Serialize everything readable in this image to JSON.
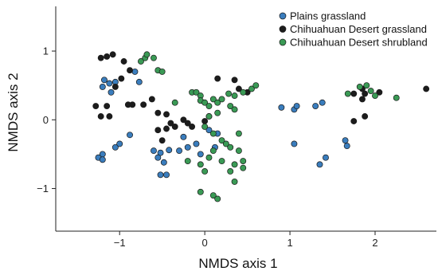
{
  "chart_data": {
    "type": "scatter",
    "xlabel": "NMDS axis 1",
    "ylabel": "NMDS axis 2",
    "xlim": [
      -1.75,
      2.72
    ],
    "ylim": [
      -1.62,
      1.65
    ],
    "xticks": [
      -1,
      0,
      1,
      2
    ],
    "yticks": [
      -1,
      0,
      1
    ],
    "xtick_labels": [
      "−1",
      "0",
      "1",
      "2"
    ],
    "ytick_labels": [
      "−1",
      "0",
      "1"
    ],
    "grid": false,
    "legend_position": "top-right",
    "series": [
      {
        "name": "Plains grassland",
        "color": "#3a7dbd",
        "points": [
          [
            -1.18,
            0.58
          ],
          [
            -1.12,
            0.53
          ],
          [
            -1.05,
            0.55
          ],
          [
            -1.2,
            0.48
          ],
          [
            -1.1,
            0.4
          ],
          [
            -0.82,
            0.7
          ],
          [
            -0.77,
            0.55
          ],
          [
            -1.2,
            -0.5
          ],
          [
            -1.25,
            -0.55
          ],
          [
            -1.2,
            -0.58
          ],
          [
            -1.05,
            -0.4
          ],
          [
            -1.0,
            -0.35
          ],
          [
            -0.88,
            -0.22
          ],
          [
            -0.6,
            -0.45
          ],
          [
            -0.52,
            -0.48
          ],
          [
            -0.42,
            -0.44
          ],
          [
            -0.55,
            -0.55
          ],
          [
            -0.48,
            -0.62
          ],
          [
            -0.52,
            -0.8
          ],
          [
            -0.45,
            -0.8
          ],
          [
            -0.1,
            -0.35
          ],
          [
            0.12,
            -0.4
          ],
          [
            -0.2,
            -0.4
          ],
          [
            -0.05,
            -0.5
          ],
          [
            0.05,
            -0.15
          ],
          [
            -0.25,
            -0.25
          ],
          [
            -0.3,
            -0.45
          ],
          [
            0.15,
            -0.2
          ],
          [
            0.9,
            0.18
          ],
          [
            1.05,
            0.15
          ],
          [
            1.08,
            0.2
          ],
          [
            1.3,
            0.2
          ],
          [
            1.38,
            0.25
          ],
          [
            1.05,
            -0.35
          ],
          [
            1.35,
            -0.65
          ],
          [
            1.42,
            -0.55
          ],
          [
            1.65,
            -0.3
          ],
          [
            1.67,
            -0.38
          ]
        ]
      },
      {
        "name": "Chihuahuan Desert grassland",
        "color": "#1c1c1c",
        "points": [
          [
            -1.08,
            0.95
          ],
          [
            -1.15,
            0.92
          ],
          [
            -1.22,
            0.9
          ],
          [
            -0.95,
            0.85
          ],
          [
            -0.88,
            0.72
          ],
          [
            -0.98,
            0.6
          ],
          [
            -1.05,
            0.48
          ],
          [
            -1.28,
            0.2
          ],
          [
            -1.15,
            0.2
          ],
          [
            -1.22,
            0.05
          ],
          [
            -1.12,
            0.05
          ],
          [
            -0.9,
            0.22
          ],
          [
            -0.85,
            0.22
          ],
          [
            -0.72,
            0.22
          ],
          [
            -0.62,
            0.3
          ],
          [
            -0.55,
            0.1
          ],
          [
            -0.45,
            0.08
          ],
          [
            -0.4,
            -0.05
          ],
          [
            -0.35,
            -0.1
          ],
          [
            -0.45,
            -0.13
          ],
          [
            -0.55,
            -0.15
          ],
          [
            -0.5,
            -0.3
          ],
          [
            -0.2,
            -0.05
          ],
          [
            -0.15,
            -0.1
          ],
          [
            -0.25,
            0.0
          ],
          [
            0.0,
            -0.02
          ],
          [
            0.05,
            0.05
          ],
          [
            0.15,
            0.6
          ],
          [
            0.35,
            0.58
          ],
          [
            0.4,
            0.45
          ],
          [
            0.5,
            0.4
          ],
          [
            1.75,
            0.38
          ],
          [
            1.85,
            0.45
          ],
          [
            1.88,
            0.38
          ],
          [
            1.85,
            0.3
          ],
          [
            2.05,
            0.4
          ],
          [
            2.6,
            0.45
          ],
          [
            1.75,
            -0.02
          ],
          [
            1.88,
            0.05
          ]
        ]
      },
      {
        "name": "Chihuahuan Desert shrubland",
        "color": "#3a9a55",
        "points": [
          [
            -0.75,
            0.85
          ],
          [
            -0.7,
            0.9
          ],
          [
            -0.68,
            0.95
          ],
          [
            -0.6,
            0.9
          ],
          [
            -0.55,
            0.72
          ],
          [
            -0.5,
            0.7
          ],
          [
            -0.35,
            0.25
          ],
          [
            -0.15,
            0.4
          ],
          [
            -0.1,
            0.4
          ],
          [
            -0.05,
            0.35
          ],
          [
            -0.05,
            0.28
          ],
          [
            0.0,
            0.25
          ],
          [
            0.05,
            0.2
          ],
          [
            0.1,
            0.3
          ],
          [
            0.15,
            0.25
          ],
          [
            0.2,
            0.3
          ],
          [
            0.28,
            0.38
          ],
          [
            0.35,
            0.35
          ],
          [
            0.45,
            0.4
          ],
          [
            0.55,
            0.45
          ],
          [
            0.6,
            0.5
          ],
          [
            0.3,
            0.2
          ],
          [
            0.15,
            0.1
          ],
          [
            0.05,
            0.05
          ],
          [
            0.0,
            -0.1
          ],
          [
            0.1,
            -0.2
          ],
          [
            0.2,
            -0.3
          ],
          [
            0.25,
            -0.35
          ],
          [
            0.3,
            -0.4
          ],
          [
            0.4,
            -0.45
          ],
          [
            0.1,
            -0.45
          ],
          [
            0.05,
            -0.55
          ],
          [
            0.2,
            -0.6
          ],
          [
            0.35,
            -0.65
          ],
          [
            0.3,
            -0.75
          ],
          [
            0.45,
            -0.6
          ],
          [
            0.45,
            -0.7
          ],
          [
            0.35,
            -0.9
          ],
          [
            0.0,
            -0.75
          ],
          [
            -0.05,
            -0.65
          ],
          [
            0.1,
            -1.1
          ],
          [
            -0.05,
            -1.05
          ],
          [
            0.15,
            -1.15
          ],
          [
            -0.2,
            -0.6
          ],
          [
            0.35,
            0.15
          ],
          [
            1.68,
            0.38
          ],
          [
            1.82,
            0.48
          ],
          [
            1.9,
            0.5
          ],
          [
            1.95,
            0.42
          ],
          [
            2.0,
            0.35
          ],
          [
            2.25,
            0.32
          ],
          [
            0.4,
            -0.2
          ]
        ]
      }
    ]
  }
}
